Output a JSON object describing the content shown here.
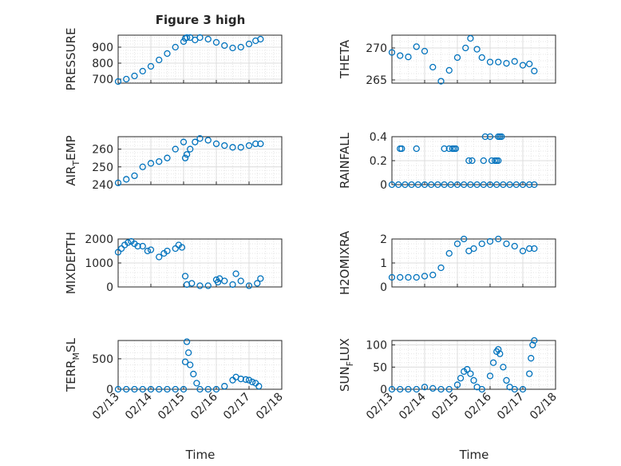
{
  "figure": {
    "title": "Figure 3 high",
    "x_label": "Time",
    "x_ticks": [
      "02/13",
      "02/14",
      "02/15",
      "02/16",
      "02/17",
      "02/18"
    ],
    "marker": "open-circle",
    "colors": {
      "series": "#0072bd",
      "axes": "#262626",
      "grid": "#dcdcdc",
      "background": "#ffffff"
    }
  },
  "chart_data": [
    {
      "type": "scatter",
      "grid": "on",
      "ylabel": "PRESSURE",
      "ylim": [
        675,
        975
      ],
      "yticks": [
        700,
        800,
        900
      ],
      "xlim": [
        13,
        18
      ],
      "series": [
        {
          "x": [
            13.0,
            13.25,
            13.5,
            13.75,
            14.0,
            14.25,
            14.5,
            14.75,
            15.0,
            15.05,
            15.1,
            15.2,
            15.35,
            15.5,
            15.75,
            16.0,
            16.25,
            16.5,
            16.75,
            17.0,
            17.2,
            17.35
          ],
          "y": [
            685,
            700,
            720,
            750,
            780,
            820,
            860,
            900,
            935,
            955,
            960,
            960,
            945,
            960,
            950,
            930,
            910,
            895,
            900,
            920,
            940,
            950
          ]
        }
      ]
    },
    {
      "type": "scatter",
      "grid": "on",
      "ylabel": "THETA",
      "ylim": [
        264.5,
        272
      ],
      "yticks": [
        265,
        270
      ],
      "xlim": [
        13,
        18
      ],
      "series": [
        {
          "x": [
            13.0,
            13.25,
            13.5,
            13.75,
            14.0,
            14.25,
            14.5,
            14.75,
            15.0,
            15.25,
            15.4,
            15.6,
            15.75,
            16.0,
            16.25,
            16.5,
            16.75,
            17.0,
            17.2,
            17.35
          ],
          "y": [
            269.3,
            268.8,
            268.6,
            270.2,
            269.5,
            267.0,
            264.8,
            266.5,
            268.5,
            270.0,
            271.5,
            269.8,
            268.5,
            267.8,
            267.8,
            267.6,
            267.9,
            267.3,
            267.5,
            266.4
          ]
        }
      ]
    },
    {
      "type": "scatter",
      "grid": "on",
      "ylabel": "AIR_TEMP",
      "ylim": [
        240,
        267
      ],
      "yticks": [
        240,
        250,
        260
      ],
      "xlim": [
        13,
        18
      ],
      "series": [
        {
          "x": [
            13.0,
            13.25,
            13.5,
            13.75,
            14.0,
            14.25,
            14.5,
            14.75,
            15.0,
            15.05,
            15.1,
            15.2,
            15.35,
            15.5,
            15.75,
            16.0,
            16.25,
            16.5,
            16.75,
            17.0,
            17.2,
            17.35
          ],
          "y": [
            241,
            243,
            245,
            250,
            252,
            253,
            255,
            260,
            264,
            255,
            257,
            260,
            264,
            266,
            265,
            263,
            262,
            261,
            261,
            262,
            263,
            263
          ]
        }
      ]
    },
    {
      "type": "scatter",
      "grid": "on",
      "ylabel": "RAINFALL",
      "ylim": [
        0,
        0.4
      ],
      "yticks": [
        0,
        0.2,
        0.4
      ],
      "xlim": [
        13,
        18
      ],
      "series": [
        {
          "x": [
            13.0,
            13.2,
            13.4,
            13.6,
            13.8,
            14.0,
            14.2,
            14.4,
            14.6,
            14.8,
            15.0,
            15.2,
            15.4,
            15.6,
            15.8,
            16.0,
            16.2,
            16.4,
            16.6,
            16.8,
            17.0,
            17.2,
            17.35,
            13.25,
            13.3,
            13.75,
            14.6,
            14.75,
            14.85,
            14.9,
            14.95,
            15.35,
            15.45,
            15.85,
            16.0,
            15.8,
            16.05,
            16.15,
            16.2,
            16.25,
            16.25,
            16.3,
            16.35
          ],
          "y": [
            0,
            0,
            0,
            0,
            0,
            0,
            0,
            0,
            0,
            0,
            0,
            0,
            0,
            0,
            0,
            0,
            0,
            0,
            0,
            0,
            0,
            0,
            0,
            0.3,
            0.3,
            0.3,
            0.3,
            0.3,
            0.3,
            0.3,
            0.3,
            0.2,
            0.2,
            0.4,
            0.4,
            0.2,
            0.2,
            0.2,
            0.2,
            0.4,
            0.2,
            0.4,
            0.4
          ]
        }
      ]
    },
    {
      "type": "scatter",
      "grid": "on",
      "ylabel": "MIXDEPTH",
      "ylim": [
        0,
        2000
      ],
      "yticks": [
        0,
        1000,
        2000
      ],
      "xlim": [
        13,
        18
      ],
      "series": [
        {
          "x": [
            13.0,
            13.1,
            13.2,
            13.3,
            13.4,
            13.5,
            13.6,
            13.75,
            13.9,
            14.0,
            14.25,
            14.4,
            14.5,
            14.75,
            14.85,
            14.95,
            15.05,
            15.1,
            15.25,
            15.5,
            15.75,
            16.0,
            16.05,
            16.1,
            16.25,
            16.5,
            16.6,
            16.75,
            17.0,
            17.25,
            17.35
          ],
          "y": [
            1450,
            1600,
            1750,
            1850,
            1900,
            1800,
            1700,
            1700,
            1500,
            1550,
            1250,
            1400,
            1500,
            1600,
            1750,
            1650,
            450,
            100,
            150,
            50,
            50,
            300,
            200,
            350,
            250,
            100,
            550,
            250,
            50,
            150,
            350
          ]
        }
      ]
    },
    {
      "type": "scatter",
      "grid": "on",
      "ylabel": "H2OMIXRA",
      "ylim": [
        0,
        2
      ],
      "yticks": [
        0,
        1,
        2
      ],
      "xlim": [
        13,
        18
      ],
      "series": [
        {
          "x": [
            13.0,
            13.25,
            13.5,
            13.75,
            14.0,
            14.25,
            14.5,
            14.75,
            15.0,
            15.2,
            15.35,
            15.5,
            15.75,
            16.0,
            16.25,
            16.5,
            16.75,
            17.0,
            17.2,
            17.35
          ],
          "y": [
            0.4,
            0.4,
            0.4,
            0.4,
            0.45,
            0.5,
            0.8,
            1.4,
            1.8,
            2.0,
            1.5,
            1.6,
            1.8,
            1.9,
            2.0,
            1.8,
            1.7,
            1.5,
            1.6,
            1.6
          ]
        }
      ]
    },
    {
      "type": "scatter",
      "grid": "on",
      "ylabel": "TERR_MSL",
      "ylim": [
        0,
        800
      ],
      "yticks": [
        0,
        500
      ],
      "xlim": [
        13,
        18
      ],
      "series": [
        {
          "x": [
            13.0,
            13.25,
            13.5,
            13.75,
            14.0,
            14.25,
            14.5,
            14.75,
            15.0,
            15.05,
            15.1,
            15.15,
            15.2,
            15.3,
            15.4,
            15.5,
            15.75,
            16.0,
            16.25,
            16.5,
            16.6,
            16.75,
            16.9,
            17.0,
            17.1,
            17.2,
            17.3
          ],
          "y": [
            0,
            0,
            0,
            0,
            0,
            0,
            0,
            0,
            0,
            450,
            780,
            600,
            400,
            250,
            100,
            0,
            0,
            0,
            50,
            150,
            200,
            170,
            160,
            150,
            120,
            100,
            50
          ]
        }
      ]
    },
    {
      "type": "scatter",
      "grid": "on",
      "ylabel": "SUN_FLUX",
      "ylim": [
        0,
        110
      ],
      "yticks": [
        0,
        50,
        100
      ],
      "xlim": [
        13,
        18
      ],
      "series": [
        {
          "x": [
            13.0,
            13.25,
            13.5,
            13.75,
            14.0,
            14.25,
            14.5,
            14.75,
            15.0,
            15.1,
            15.2,
            15.3,
            15.4,
            15.5,
            15.6,
            15.75,
            16.0,
            16.1,
            16.2,
            16.25,
            16.3,
            16.4,
            16.5,
            16.6,
            16.75,
            17.0,
            17.2,
            17.25,
            17.3,
            17.35
          ],
          "y": [
            0,
            0,
            0,
            0,
            5,
            2,
            0,
            0,
            10,
            25,
            40,
            45,
            35,
            20,
            5,
            0,
            30,
            60,
            85,
            90,
            80,
            50,
            20,
            5,
            0,
            0,
            35,
            70,
            100,
            110
          ]
        }
      ]
    }
  ]
}
